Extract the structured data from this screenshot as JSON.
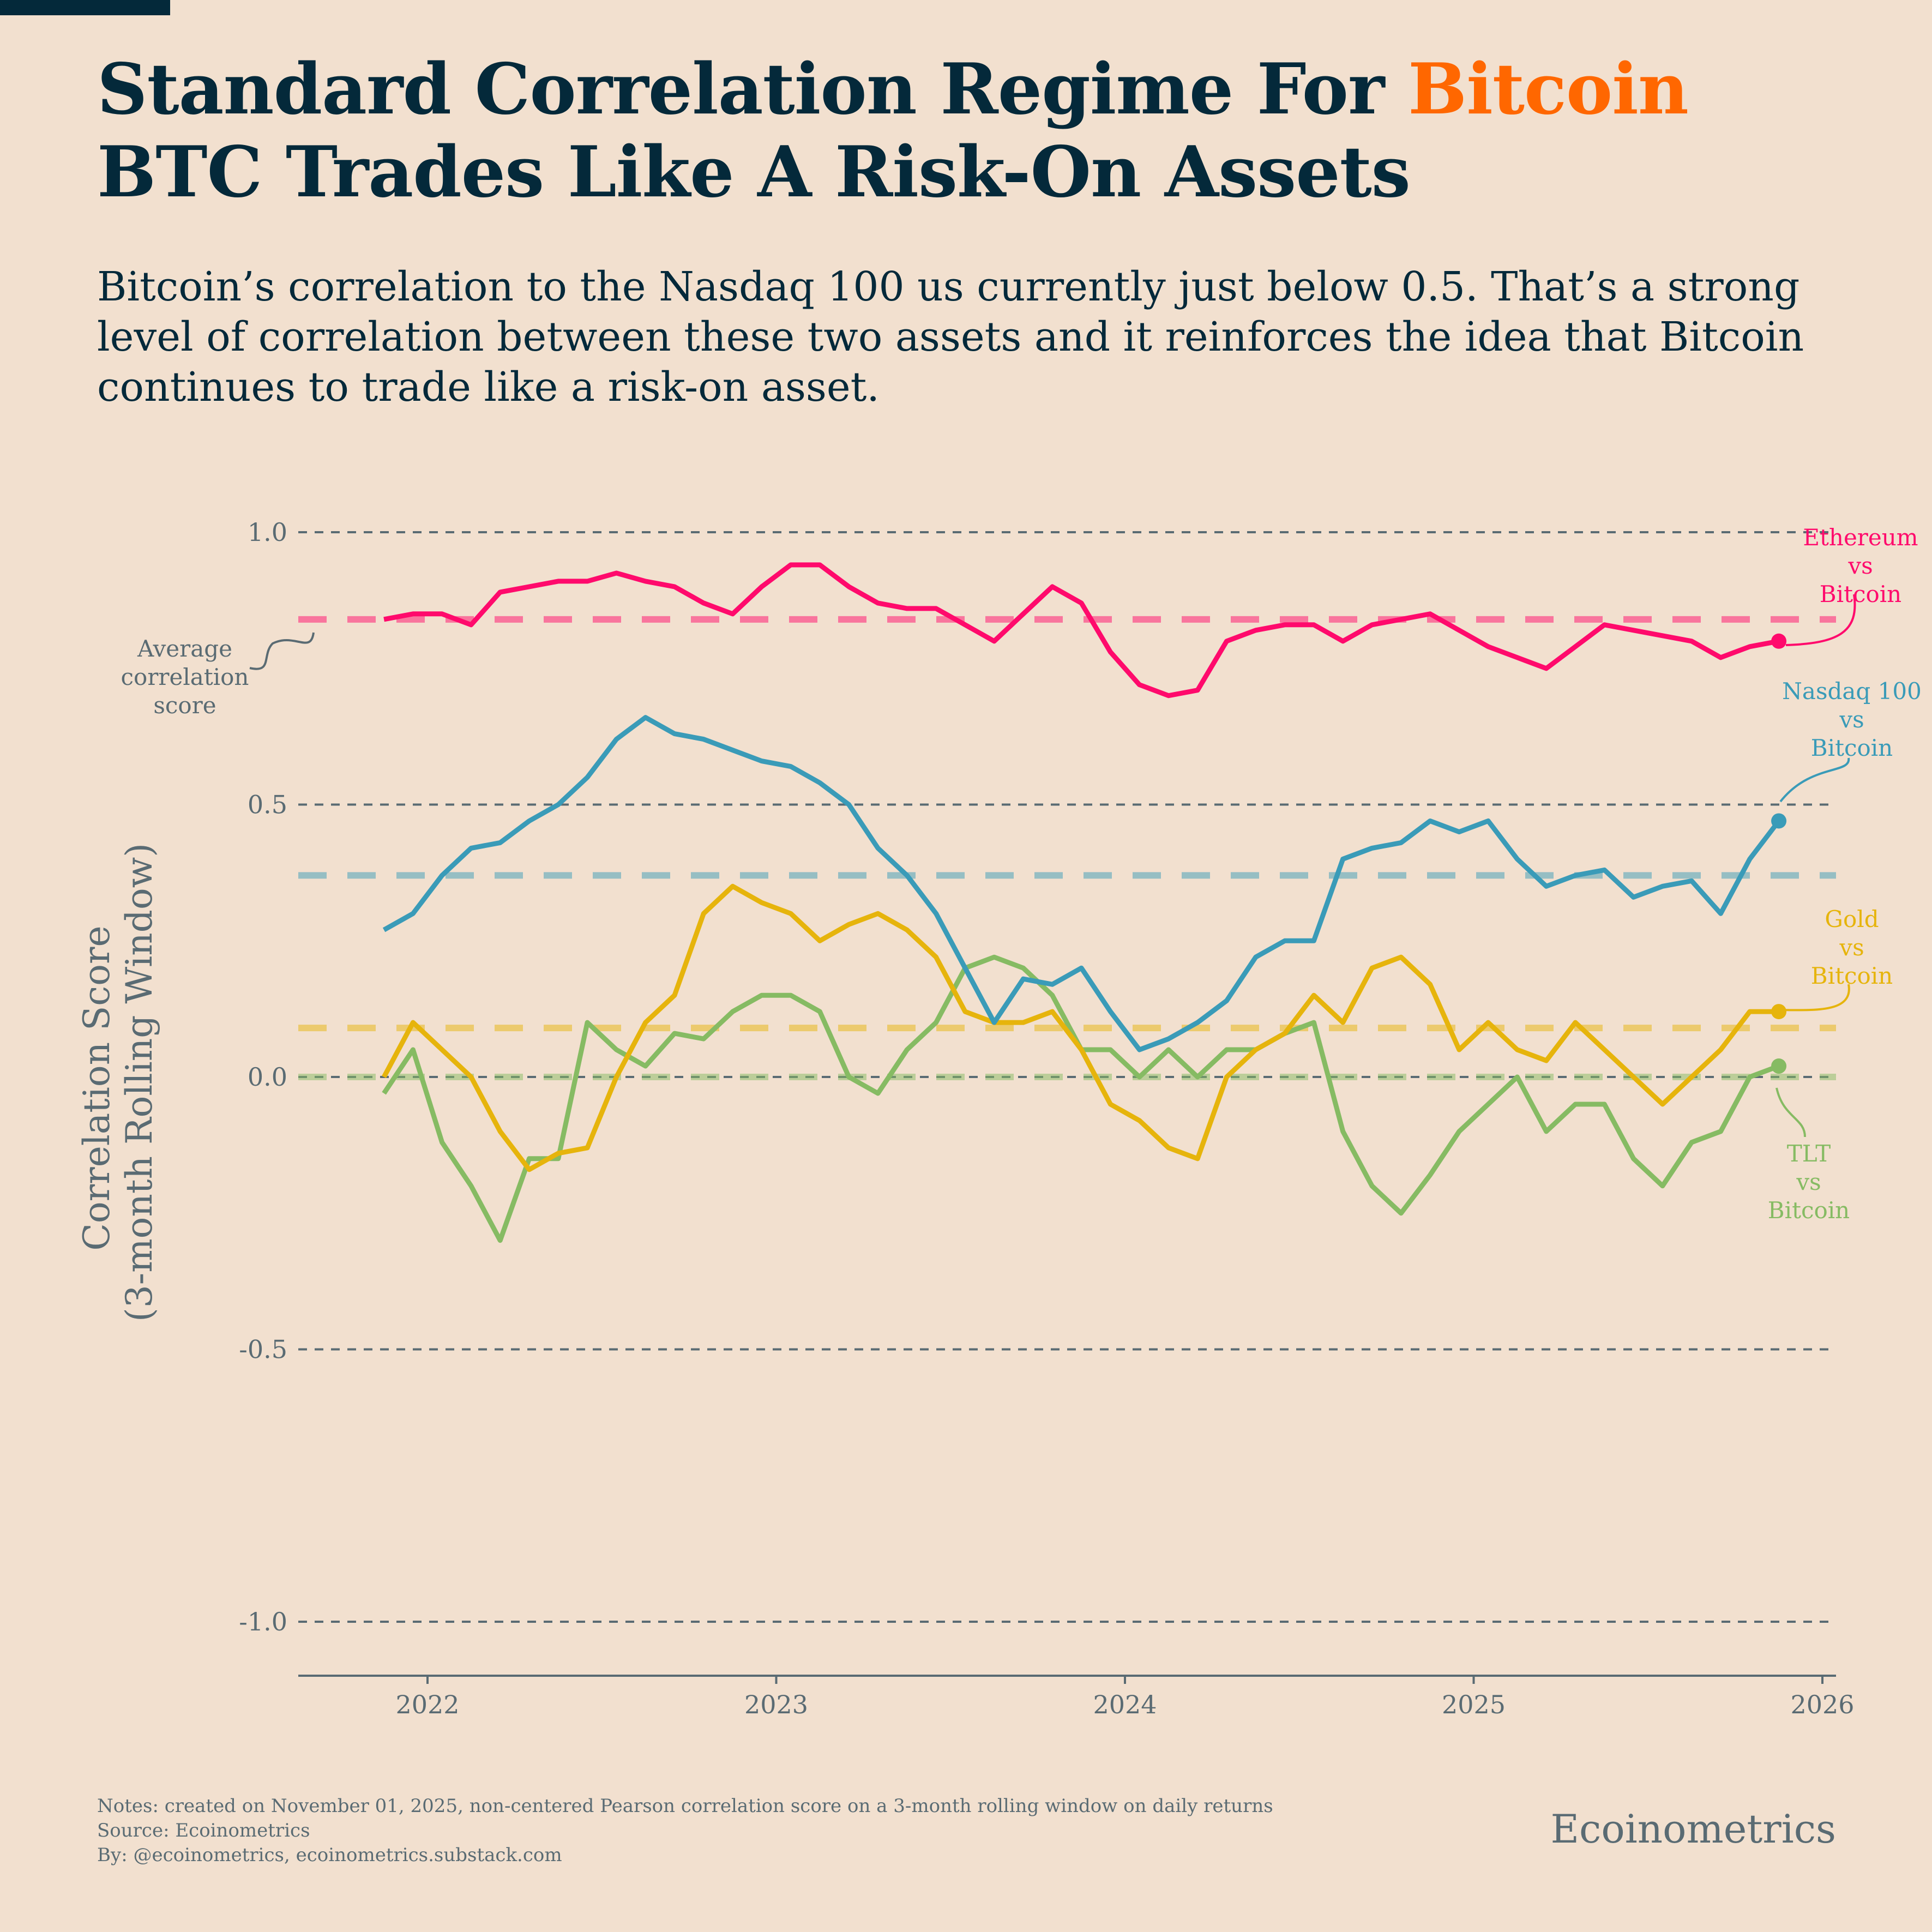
{
  "title": {
    "line1_prefix": "Standard Correlation Regime For ",
    "line1_accent": "Bitcoin",
    "line2": "BTC Trades Like A Risk-On Assets"
  },
  "subtitle": "Bitcoin’s correlation to the Nasdaq 100 us currently just below 0.5. That’s a strong level of correlation between these two assets and it reinforces the idea that Bitcoin continues to trade like a risk-on asset.",
  "footer": {
    "notes": "Notes: created on November 01, 2025, non-centered Pearson correlation score on a 3-month rolling window on daily returns",
    "source": "Source: Ecoinometrics",
    "by": "By: @ecoinometrics, ecoinometrics.substack.com",
    "brand": "Ecoinometrics"
  },
  "colors": {
    "accent": "#ff6700",
    "title": "#04293a",
    "ethereum": "#ff0a6c",
    "nasdaq": "#3a9bb8",
    "gold": "#e6b40c",
    "tlt": "#86bb63",
    "grid": "#5a6b73"
  },
  "chart_data": {
    "type": "line",
    "ylabel": [
      "Correlation Score",
      "(3-month Rolling Window)"
    ],
    "ylim": [
      -1.1,
      1.1
    ],
    "yticks": [
      1.0,
      0.5,
      0.0,
      -0.5,
      -1.0
    ],
    "ytick_labels": [
      "1.0",
      "0.5",
      "0.0",
      "-0.5",
      "-1.0"
    ],
    "xticks": [
      2022,
      2023,
      2024,
      2025,
      2026
    ],
    "xtick_labels": [
      "2022",
      "2023",
      "2024",
      "2025",
      "2026"
    ],
    "xlim": [
      "2021-08",
      "2026-01"
    ],
    "grid": "horizontal dashed",
    "x": [
      "2021-11",
      "2021-12",
      "2022-01",
      "2022-02",
      "2022-03",
      "2022-04",
      "2022-05",
      "2022-06",
      "2022-07",
      "2022-08",
      "2022-09",
      "2022-10",
      "2022-11",
      "2022-12",
      "2023-01",
      "2023-02",
      "2023-03",
      "2023-04",
      "2023-05",
      "2023-06",
      "2023-07",
      "2023-08",
      "2023-09",
      "2023-10",
      "2023-11",
      "2023-12",
      "2024-01",
      "2024-02",
      "2024-03",
      "2024-04",
      "2024-05",
      "2024-06",
      "2024-07",
      "2024-08",
      "2024-09",
      "2024-10",
      "2024-11",
      "2024-12",
      "2025-01",
      "2025-02",
      "2025-03",
      "2025-04",
      "2025-05",
      "2025-06",
      "2025-07",
      "2025-08",
      "2025-09",
      "2025-10",
      "2025-11"
    ],
    "series": [
      {
        "name": "Ethereum vs Bitcoin",
        "label": [
          "Ethereum",
          "vs",
          "Bitcoin"
        ],
        "color": "#ff0a6c",
        "average": 0.84,
        "values": [
          0.84,
          0.85,
          0.85,
          0.83,
          0.89,
          0.9,
          0.91,
          0.91,
          0.925,
          0.91,
          0.9,
          0.87,
          0.85,
          0.9,
          0.94,
          0.94,
          0.9,
          0.87,
          0.86,
          0.86,
          0.83,
          0.8,
          0.85,
          0.9,
          0.87,
          0.78,
          0.72,
          0.7,
          0.71,
          0.8,
          0.82,
          0.83,
          0.83,
          0.8,
          0.83,
          0.84,
          0.85,
          0.82,
          0.79,
          0.77,
          0.75,
          0.79,
          0.83,
          0.82,
          0.81,
          0.8,
          0.77,
          0.79,
          0.8
        ]
      },
      {
        "name": "Nasdaq 100 vs Bitcoin",
        "label": [
          "Nasdaq 100",
          "vs",
          "Bitcoin"
        ],
        "color": "#3a9bb8",
        "average": 0.37,
        "values": [
          0.27,
          0.3,
          0.37,
          0.42,
          0.43,
          0.47,
          0.5,
          0.55,
          0.62,
          0.66,
          0.63,
          0.62,
          0.6,
          0.58,
          0.57,
          0.54,
          0.5,
          0.42,
          0.37,
          0.3,
          0.2,
          0.1,
          0.18,
          0.17,
          0.2,
          0.12,
          0.05,
          0.07,
          0.1,
          0.14,
          0.22,
          0.25,
          0.25,
          0.4,
          0.42,
          0.43,
          0.47,
          0.45,
          0.47,
          0.4,
          0.35,
          0.37,
          0.38,
          0.33,
          0.35,
          0.36,
          0.3,
          0.4,
          0.47
        ]
      },
      {
        "name": "Gold vs Bitcoin",
        "label": [
          "Gold",
          "vs",
          "Bitcoin"
        ],
        "color": "#e6b40c",
        "average": 0.09,
        "values": [
          0.0,
          0.1,
          0.05,
          0.0,
          -0.1,
          -0.17,
          -0.14,
          -0.13,
          0.0,
          0.1,
          0.15,
          0.3,
          0.35,
          0.32,
          0.3,
          0.25,
          0.28,
          0.3,
          0.27,
          0.22,
          0.12,
          0.1,
          0.1,
          0.12,
          0.05,
          -0.05,
          -0.08,
          -0.13,
          -0.15,
          0.0,
          0.05,
          0.08,
          0.15,
          0.1,
          0.2,
          0.22,
          0.17,
          0.05,
          0.1,
          0.05,
          0.03,
          0.1,
          0.05,
          0.0,
          -0.05,
          0.0,
          0.05,
          0.12,
          0.12
        ]
      },
      {
        "name": "TLT vs Bitcoin",
        "label": [
          "TLT",
          "vs",
          "Bitcoin"
        ],
        "color": "#86bb63",
        "average": 0.0,
        "values": [
          -0.03,
          0.05,
          -0.12,
          -0.2,
          -0.3,
          -0.15,
          -0.15,
          0.1,
          0.05,
          0.02,
          0.08,
          0.07,
          0.12,
          0.15,
          0.15,
          0.12,
          0.0,
          -0.03,
          0.05,
          0.1,
          0.2,
          0.22,
          0.2,
          0.15,
          0.05,
          0.05,
          0.0,
          0.05,
          0.0,
          0.05,
          0.05,
          0.08,
          0.1,
          -0.1,
          -0.2,
          -0.25,
          -0.18,
          -0.1,
          -0.05,
          0.0,
          -0.1,
          -0.05,
          -0.05,
          -0.15,
          -0.2,
          -0.12,
          -0.1,
          0.0,
          0.02
        ]
      }
    ],
    "annotations": {
      "average_label": [
        "Average",
        "correlation",
        "score"
      ]
    }
  }
}
